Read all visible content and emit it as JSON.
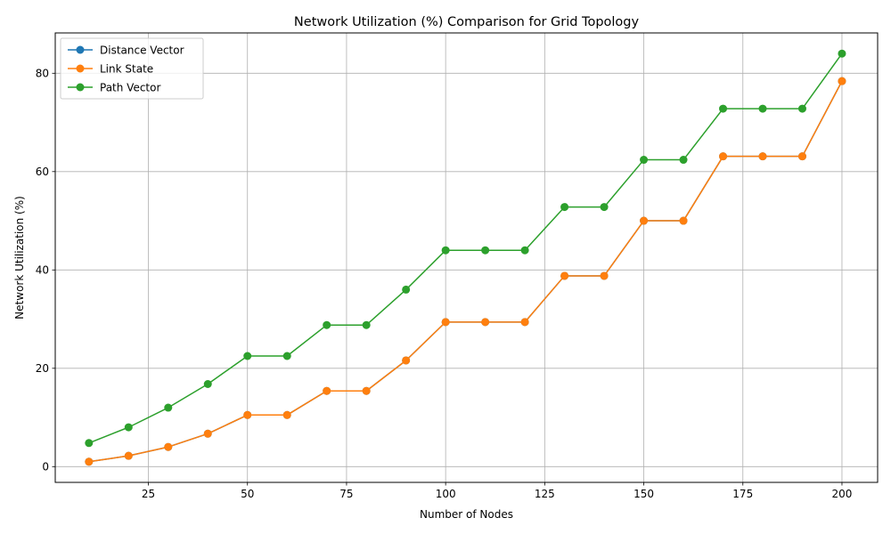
{
  "chart_data": {
    "type": "line",
    "title": "Network Utilization (%) Comparison for Grid Topology",
    "xlabel": "Number of Nodes",
    "ylabel": "Network Utilization (%)",
    "x": [
      10,
      20,
      30,
      40,
      50,
      60,
      70,
      80,
      90,
      100,
      110,
      120,
      130,
      140,
      150,
      160,
      170,
      180,
      190,
      200
    ],
    "xlim": [
      1.5,
      209
    ],
    "ylim": [
      -3.2,
      88.2
    ],
    "xticks": [
      25,
      50,
      75,
      100,
      125,
      150,
      175,
      200
    ],
    "yticks": [
      0,
      20,
      40,
      60,
      80
    ],
    "grid": true,
    "legend_position": "top-left",
    "series": [
      {
        "name": "Distance Vector",
        "color": "#1f77b4",
        "values": [
          1.0,
          2.2,
          4.0,
          6.7,
          10.5,
          10.5,
          15.4,
          15.4,
          21.6,
          29.4,
          29.4,
          29.4,
          38.8,
          38.8,
          50.0,
          50.0,
          63.1,
          63.1,
          63.1,
          78.4
        ]
      },
      {
        "name": "Link State",
        "color": "#ff7f0e",
        "values": [
          1.0,
          2.2,
          4.0,
          6.7,
          10.5,
          10.5,
          15.4,
          15.4,
          21.6,
          29.4,
          29.4,
          29.4,
          38.8,
          38.8,
          50.0,
          50.0,
          63.1,
          63.1,
          63.1,
          78.4
        ]
      },
      {
        "name": "Path Vector",
        "color": "#2ca02c",
        "values": [
          4.8,
          8.0,
          12.0,
          16.8,
          22.5,
          22.5,
          28.8,
          28.8,
          36.0,
          44.0,
          44.0,
          44.0,
          52.8,
          52.8,
          62.4,
          62.4,
          72.8,
          72.8,
          72.8,
          84.0
        ]
      }
    ]
  }
}
